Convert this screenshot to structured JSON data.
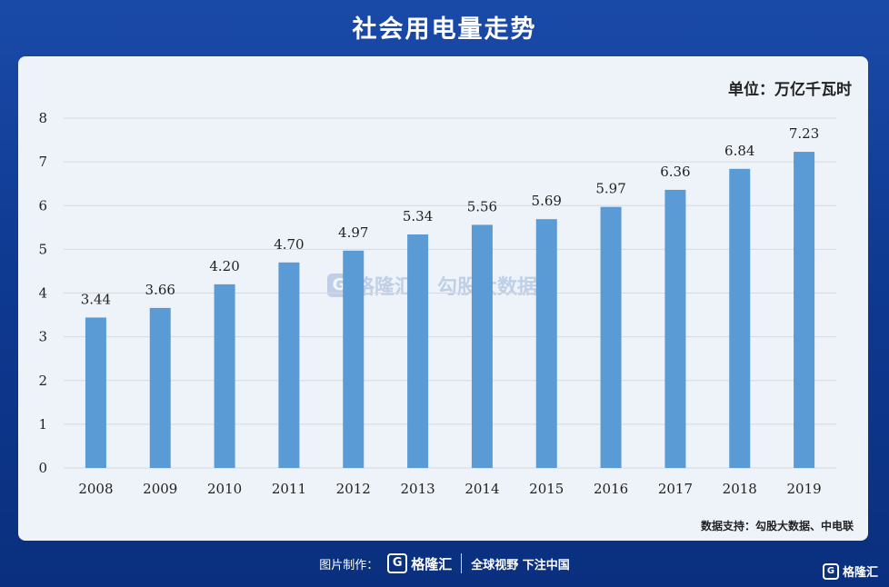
{
  "header": {
    "title": "社会用电量走势"
  },
  "chart_data": {
    "type": "bar",
    "unit_label": "单位：万亿千瓦时",
    "categories": [
      "2008",
      "2009",
      "2010",
      "2011",
      "2012",
      "2013",
      "2014",
      "2015",
      "2016",
      "2017",
      "2018",
      "2019"
    ],
    "values": [
      3.44,
      3.66,
      4.2,
      4.7,
      4.97,
      5.34,
      5.56,
      5.69,
      5.97,
      6.36,
      6.84,
      7.23
    ],
    "value_labels": [
      "3.44",
      "3.66",
      "4.20",
      "4.70",
      "4.97",
      "5.34",
      "5.56",
      "5.69",
      "5.97",
      "6.36",
      "6.84",
      "7.23"
    ],
    "y_ticks": [
      0,
      1,
      2,
      3,
      4,
      5,
      6,
      7,
      8
    ],
    "ylim": [
      0,
      8
    ],
    "bar_color": "#5b9bd5",
    "source": "数据支持：勾股大数据、中电联"
  },
  "watermark": {
    "logo_glyph": "G",
    "name": "格隆汇",
    "name2": "勾股大数据"
  },
  "footer": {
    "made_by_label": "图片制作：",
    "logo_glyph": "G",
    "logo_name": "格隆汇",
    "slogan": "全球视野 下注中国"
  },
  "corner_logo": {
    "glyph": "G",
    "name": "格隆汇"
  }
}
